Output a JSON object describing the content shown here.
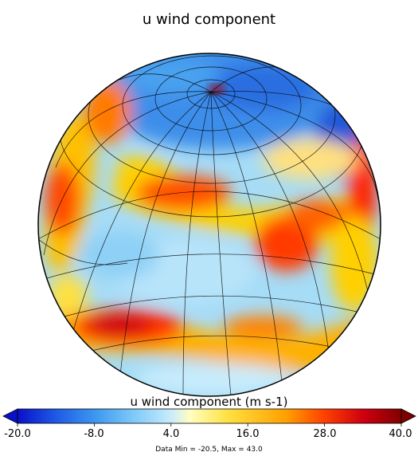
{
  "title": "u wind component",
  "colorbar": {
    "label": "u wind component (m s-1)",
    "min": -20.0,
    "max": 40.0,
    "ticks": [
      "-20.0",
      "-8.0",
      "4.0",
      "16.0",
      "28.0",
      "40.0"
    ],
    "tick_values": [
      -20,
      -8,
      4,
      16,
      28,
      40
    ],
    "colors": [
      "#0a10c8",
      "#1e5ae6",
      "#3c96f0",
      "#7cc8f8",
      "#c8ecfc",
      "#ffffc0",
      "#ffe040",
      "#ffa000",
      "#ff4000",
      "#d00010",
      "#800000"
    ],
    "extend_low_color": "#0a10c8",
    "extend_high_color": "#800000"
  },
  "data_range": "Data Min = -20.5, Max = 43.0"
}
